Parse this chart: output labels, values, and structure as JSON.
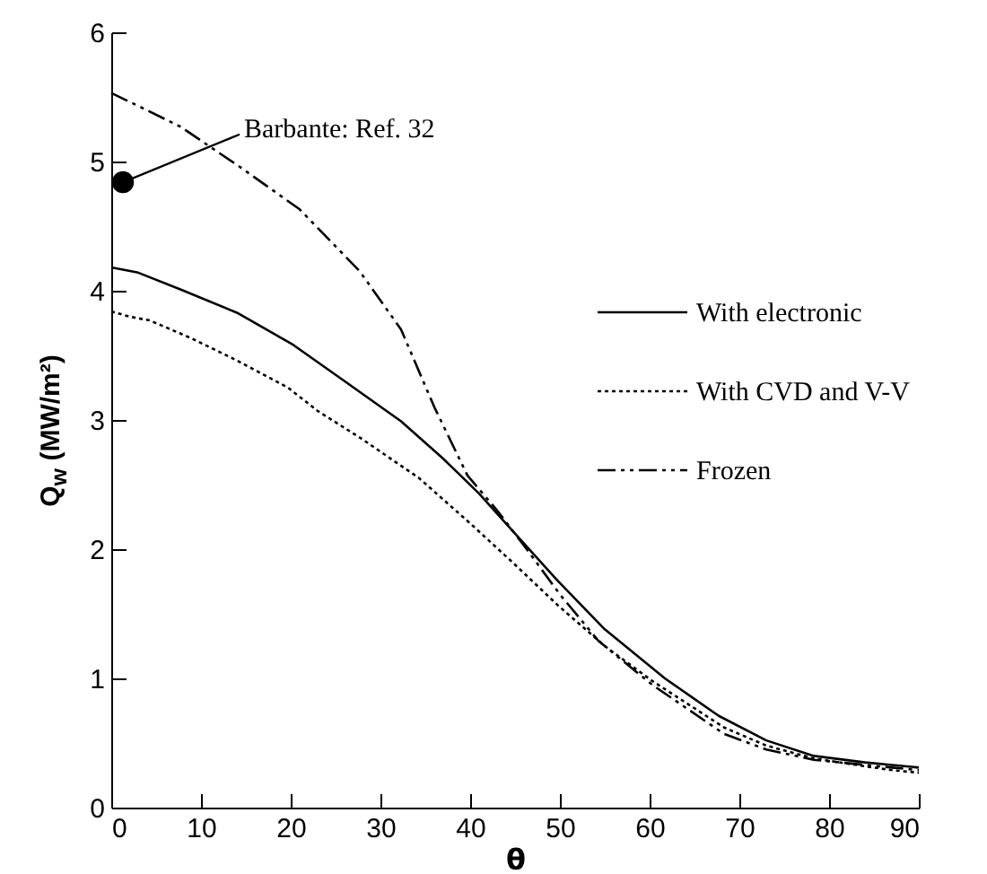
{
  "chart_data": {
    "type": "line",
    "xlabel": "θ",
    "ylabel": "Q$_{w}$ (MW/m²)",
    "xlim": [
      0,
      90
    ],
    "ylim": [
      0,
      6
    ],
    "xticks": [
      0,
      10,
      20,
      30,
      40,
      50,
      60,
      70,
      80,
      90
    ],
    "yticks": [
      0,
      1,
      2,
      3,
      4,
      5,
      6
    ],
    "legend": "right",
    "series": [
      {
        "name": "With electronic",
        "color": "#000000",
        "line_style": "solid",
        "x": [
          0,
          3,
          7.7,
          14,
          20.3,
          26,
          32.3,
          37,
          41,
          45,
          49.7,
          55,
          61.7,
          67.7,
          73,
          78.3,
          84,
          87,
          90
        ],
        "values": [
          4.18,
          4.14,
          4.01,
          3.83,
          3.58,
          3.3,
          2.99,
          2.7,
          2.43,
          2.12,
          1.76,
          1.38,
          1.0,
          0.71,
          0.52,
          0.4,
          0.35,
          0.33,
          0.31
        ]
      },
      {
        "name": "With CVD and V-V",
        "color": "#000000",
        "line_style": "dotted",
        "x": [
          0,
          2,
          4.3,
          9,
          14,
          19.7,
          23,
          28,
          34.3,
          40,
          45,
          49.7,
          55,
          60.3,
          68.3,
          73,
          78.3,
          84,
          87,
          90
        ],
        "values": [
          3.84,
          3.8,
          3.77,
          3.63,
          3.46,
          3.25,
          3.07,
          2.85,
          2.55,
          2.2,
          1.88,
          1.57,
          1.25,
          0.98,
          0.62,
          0.48,
          0.38,
          0.32,
          0.29,
          0.27
        ]
      },
      {
        "name": "Frozen",
        "color": "#000000",
        "line_style": "dashed",
        "x": [
          0,
          3,
          7.7,
          14.3,
          21,
          27.7,
          32.3,
          36,
          39.7,
          43,
          46.3,
          50,
          54.3,
          60.3,
          68.3,
          73,
          78.3,
          84,
          87,
          90
        ],
        "values": [
          5.53,
          5.43,
          5.27,
          4.96,
          4.63,
          4.15,
          3.7,
          3.1,
          2.57,
          2.3,
          2.0,
          1.65,
          1.29,
          0.95,
          0.57,
          0.45,
          0.37,
          0.33,
          0.31,
          0.29
        ]
      },
      {
        "type": "scatter",
        "color": "#000000",
        "marker": "circle",
        "x": [
          1.3
        ],
        "values": [
          4.84
        ]
      }
    ],
    "annotations": [
      {
        "text": "Barbante: Ref. 32",
        "x": 1.3,
        "y": 4.84
      }
    ]
  }
}
